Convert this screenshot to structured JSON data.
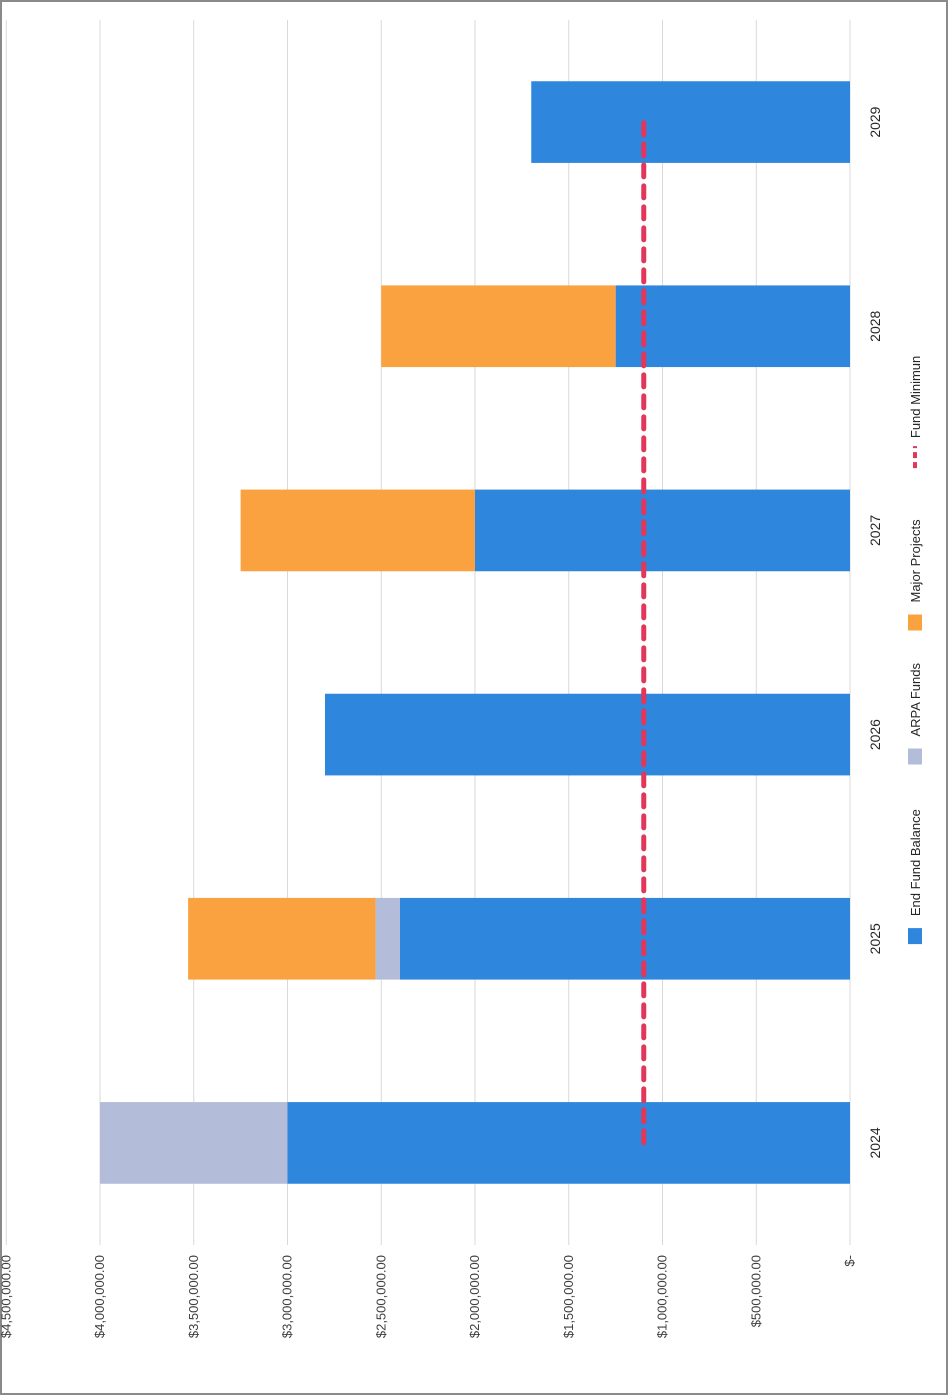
{
  "chart_data": {
    "type": "bar",
    "stacked": true,
    "orientation": "horizontal",
    "categories": [
      "2024",
      "2025",
      "2026",
      "2027",
      "2028",
      "2029"
    ],
    "series": [
      {
        "name": "End Fund Balance",
        "color": "#2f86dd",
        "values": [
          3000000,
          2400000,
          2800000,
          2000000,
          1250000,
          1700000
        ]
      },
      {
        "name": "ARPA Funds",
        "color": "#b3bcd9",
        "values": [
          1000000,
          130000,
          0,
          0,
          0,
          0
        ]
      },
      {
        "name": "Major Projects",
        "color": "#f9a23f",
        "values": [
          0,
          1000000,
          0,
          1250000,
          1250000,
          0
        ]
      }
    ],
    "line_series": {
      "name": "Fund Minimun",
      "color": "#e2375a",
      "style": "dashed",
      "values": [
        1100000,
        1100000,
        1100000,
        1100000,
        1100000,
        1100000
      ]
    },
    "value_axis": {
      "min": 0,
      "max": 4500000,
      "ticks": [
        {
          "value": 0,
          "label": "$-"
        },
        {
          "value": 500000,
          "label": "$500,000.00"
        },
        {
          "value": 1000000,
          "label": "$1,000,000.00"
        },
        {
          "value": 1500000,
          "label": "$1,500,000.00"
        },
        {
          "value": 2000000,
          "label": "$2,000,000.00"
        },
        {
          "value": 2500000,
          "label": "$2,500,000.00"
        },
        {
          "value": 3000000,
          "label": "$3,000,000.00"
        },
        {
          "value": 3500000,
          "label": "$3,500,000.00"
        },
        {
          "value": 4000000,
          "label": "$4,000,000.00"
        },
        {
          "value": 4500000,
          "label": "$4,500,000.00"
        }
      ]
    },
    "grid": true,
    "legend": {
      "position": "bottom"
    }
  }
}
